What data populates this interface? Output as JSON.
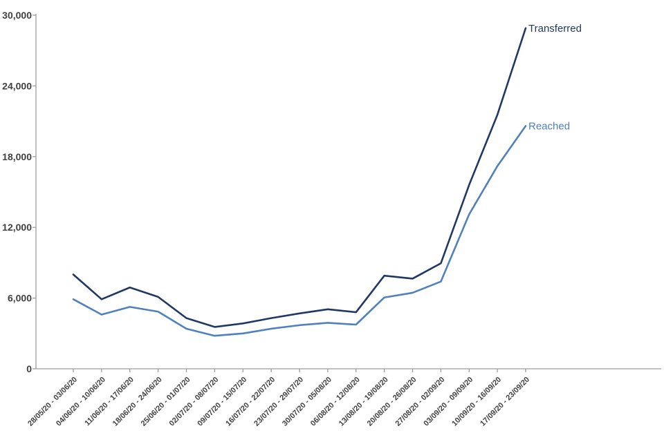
{
  "chart_data": {
    "type": "line",
    "title": "",
    "xlabel": "",
    "ylabel": "",
    "categories": [
      "28/05/20 - 03/06/20",
      "04/06/20 - 10/06/20",
      "11/06/20 - 17/06/20",
      "18/06/20 - 24/06/20",
      "25/06/20 - 01/07/20",
      "02/07/20 - 08/07/20",
      "09/07/20 - 15/07/20",
      "16/07/20 - 22/07/20",
      "23/07/20 - 29/07/20",
      "30/07/20 - 05/08/20",
      "06/08/20 - 12/08/20",
      "13/08/20 - 19/08/20",
      "20/08/20 - 26/08/20",
      "27/08/20 - 02/09/20",
      "03/09/20 - 09/09/20",
      "10/09/20 - 16/09/20",
      "17/09/20 - 23/09/20"
    ],
    "series": [
      {
        "name": "Transferred",
        "color": "#1F3864",
        "values": [
          8000,
          5900,
          6900,
          6100,
          4300,
          3550,
          3850,
          4300,
          4700,
          5050,
          4800,
          7900,
          7650,
          8950,
          15600,
          21550,
          28900
        ]
      },
      {
        "name": "Reached",
        "color": "#4F81BD",
        "values": [
          5900,
          4600,
          5250,
          4850,
          3400,
          2800,
          3000,
          3400,
          3700,
          3900,
          3750,
          6050,
          6450,
          7400,
          13100,
          17200,
          20600
        ]
      }
    ],
    "ylim": [
      0,
      30000
    ],
    "yticks": [
      0,
      6000,
      12000,
      18000,
      24000,
      30000
    ],
    "ytick_labels": [
      "0",
      "6,000",
      "12,000",
      "18,000",
      "24,000",
      "30,000"
    ],
    "grid": false,
    "legend_position": "line-end-labels",
    "axis_color": "#9C9C9C",
    "tick_label_color": "#404040"
  }
}
